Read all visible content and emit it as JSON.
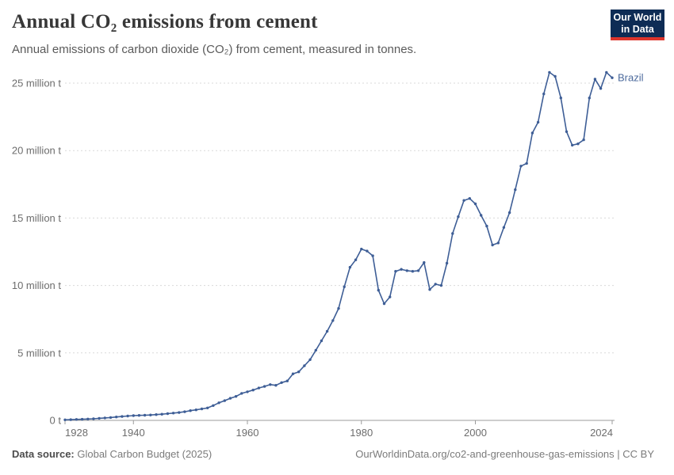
{
  "header": {
    "title": "Annual CO₂ emissions from cement",
    "subtitle": "Annual emissions of carbon dioxide (CO₂) from cement, measured in tonnes."
  },
  "logo": {
    "line1": "Our World",
    "line2": "in Data",
    "background_color": "#0e2c55",
    "accent_color": "#dd352c"
  },
  "footer": {
    "source_label": "Data source:",
    "source_value": " Global Carbon Budget (2025)",
    "credit": "OurWorldinData.org/co2-and-greenhouse-gas-emissions | CC BY"
  },
  "chart_data": {
    "type": "line",
    "title": "Annual CO₂ emissions from cement",
    "xlabel": "",
    "ylabel": "",
    "unit": "tonnes",
    "grid": true,
    "legend_position": "end-of-line",
    "xlim": [
      1928,
      2024
    ],
    "ylim": [
      0,
      26
    ],
    "x_ticks": [
      1928,
      1940,
      1960,
      1980,
      2000,
      2024
    ],
    "y_ticks": [
      {
        "value": 0,
        "label": "0 t"
      },
      {
        "value": 5,
        "label": "5 million t"
      },
      {
        "value": 10,
        "label": "10 million t"
      },
      {
        "value": 15,
        "label": "15 million t"
      },
      {
        "value": 20,
        "label": "20 million t"
      },
      {
        "value": 25,
        "label": "25 million t"
      }
    ],
    "series": [
      {
        "name": "Brazil",
        "color": "#3e5e96",
        "label_color": "#4c6a9c",
        "value_unit": "million tonnes",
        "years": [
          1928,
          1929,
          1930,
          1931,
          1932,
          1933,
          1934,
          1935,
          1936,
          1937,
          1938,
          1939,
          1940,
          1941,
          1942,
          1943,
          1944,
          1945,
          1946,
          1947,
          1948,
          1949,
          1950,
          1951,
          1952,
          1953,
          1954,
          1955,
          1956,
          1957,
          1958,
          1959,
          1960,
          1961,
          1962,
          1963,
          1964,
          1965,
          1966,
          1967,
          1968,
          1969,
          1970,
          1971,
          1972,
          1973,
          1974,
          1975,
          1976,
          1977,
          1978,
          1979,
          1980,
          1981,
          1982,
          1983,
          1984,
          1985,
          1986,
          1987,
          1988,
          1989,
          1990,
          1991,
          1992,
          1993,
          1994,
          1995,
          1996,
          1997,
          1998,
          1999,
          2000,
          2001,
          2002,
          2003,
          2004,
          2005,
          2006,
          2007,
          2008,
          2009,
          2010,
          2011,
          2012,
          2013,
          2014,
          2015,
          2016,
          2017,
          2018,
          2019,
          2020,
          2021,
          2022,
          2023,
          2024
        ],
        "values": [
          0.04,
          0.05,
          0.07,
          0.08,
          0.1,
          0.12,
          0.15,
          0.18,
          0.21,
          0.25,
          0.29,
          0.32,
          0.35,
          0.37,
          0.38,
          0.4,
          0.43,
          0.46,
          0.5,
          0.54,
          0.58,
          0.64,
          0.72,
          0.78,
          0.85,
          0.92,
          1.1,
          1.3,
          1.46,
          1.64,
          1.78,
          2.0,
          2.12,
          2.25,
          2.4,
          2.52,
          2.65,
          2.6,
          2.8,
          2.92,
          3.45,
          3.6,
          4.05,
          4.5,
          5.2,
          5.9,
          6.6,
          7.4,
          8.3,
          9.9,
          11.35,
          11.9,
          12.7,
          12.55,
          12.2,
          9.65,
          8.65,
          9.15,
          11.05,
          11.2,
          11.1,
          11.05,
          11.1,
          11.7,
          9.7,
          10.1,
          10.0,
          11.65,
          13.85,
          15.1,
          16.3,
          16.45,
          16.05,
          15.2,
          14.4,
          13.0,
          13.15,
          14.3,
          15.4,
          17.1,
          18.85,
          19.05,
          21.3,
          22.1,
          24.2,
          25.8,
          25.5,
          23.9,
          21.4,
          20.4,
          20.5,
          20.8,
          23.9,
          25.3,
          24.6,
          25.8,
          25.4
        ]
      }
    ]
  }
}
